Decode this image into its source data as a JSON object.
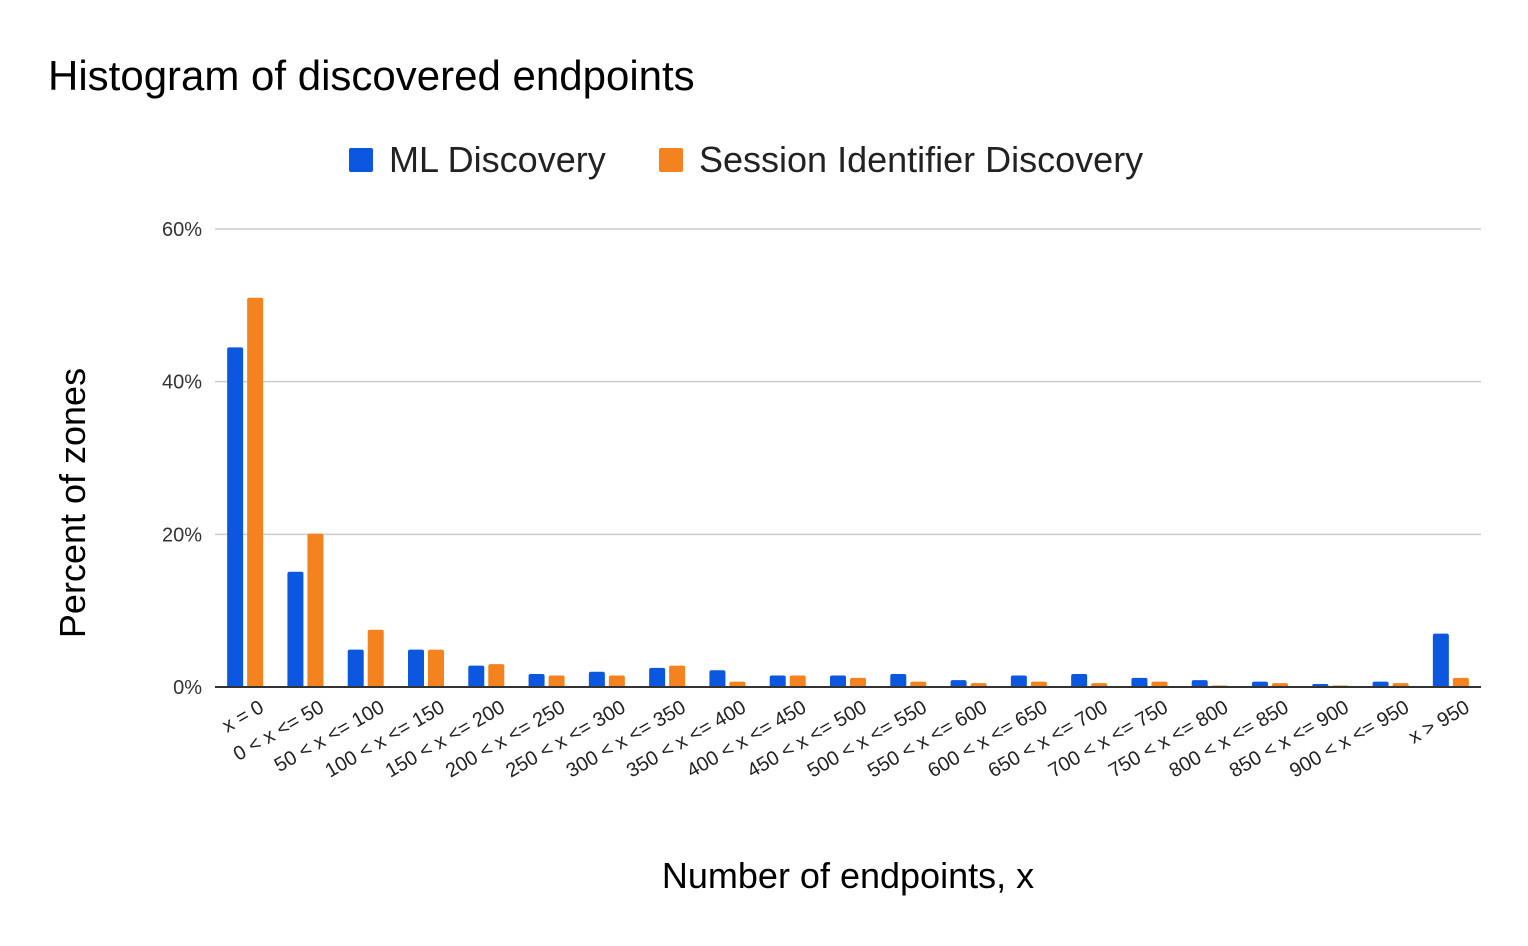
{
  "chart_data": {
    "type": "bar",
    "title": "Histogram of discovered endpoints",
    "xlabel": "Number of endpoints, x",
    "ylabel": "Percent of zones",
    "ylim": [
      0,
      60
    ],
    "yticks": [
      "0%",
      "20%",
      "40%",
      "60%"
    ],
    "grid": true,
    "legend_position": "top-center",
    "categories": [
      "x = 0",
      "0 < x <= 50",
      "50 < x <= 100",
      "100 < x <= 150",
      "150 < x <= 200",
      "200 < x <= 250",
      "250 < x <= 300",
      "300 < x <= 350",
      "350 < x <= 400",
      "400 < x <= 450",
      "450 < x <= 500",
      "500 < x <= 550",
      "550 < x <= 600",
      "600 < x <= 650",
      "650 < x <= 700",
      "700 < x <= 750",
      "750 < x <= 800",
      "800 < x <= 850",
      "850 < x <= 900",
      "900 < x <= 950",
      "x > 950"
    ],
    "series": [
      {
        "name": "ML Discovery",
        "color": "#0b57e0",
        "values": [
          44.5,
          15.1,
          4.9,
          4.9,
          2.8,
          1.7,
          2.0,
          2.5,
          2.2,
          1.5,
          1.5,
          1.7,
          0.9,
          1.5,
          1.7,
          1.2,
          0.9,
          0.7,
          0.4,
          0.7,
          7.0
        ]
      },
      {
        "name": "Session Identifier Discovery",
        "color": "#f4821f",
        "values": [
          51.0,
          20.1,
          7.5,
          4.9,
          3.0,
          1.5,
          1.5,
          2.8,
          0.7,
          1.5,
          1.2,
          0.7,
          0.5,
          0.7,
          0.5,
          0.7,
          0.2,
          0.5,
          0.2,
          0.5,
          1.2
        ]
      }
    ]
  }
}
